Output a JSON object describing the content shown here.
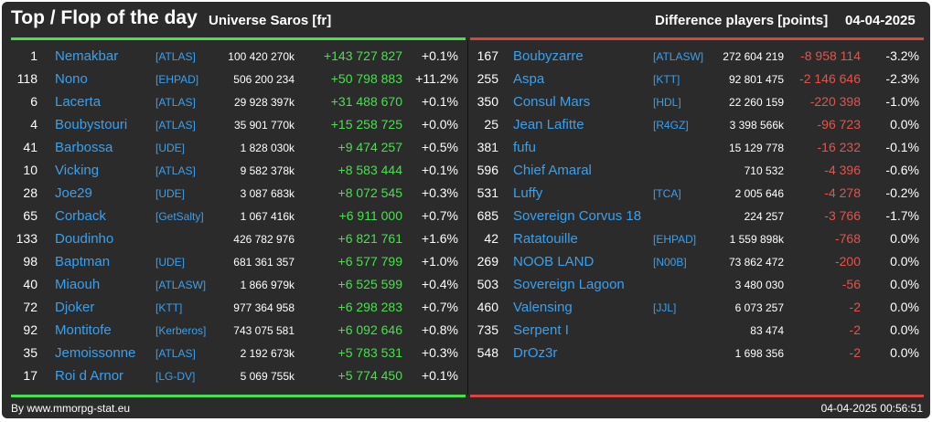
{
  "header": {
    "title": "Top / Flop of the day",
    "universe": "Universe Saros [fr]",
    "metric": "Difference players [points]",
    "date": "04-04-2025"
  },
  "colors": {
    "positive": "#49e04f",
    "negative": "#e5534b",
    "link": "#3aa0ee",
    "background": "#2b2b2b"
  },
  "top": [
    {
      "rank": "1",
      "name": "Nemakbar",
      "ally": "[ATLAS]",
      "points": "100 420 270k",
      "diff": "+143 727 827",
      "pct": "+0.1%"
    },
    {
      "rank": "118",
      "name": "Nono",
      "ally": "[EHPAD]",
      "points": "506 200 234",
      "diff": "+50 798 883",
      "pct": "+11.2%"
    },
    {
      "rank": "6",
      "name": "Lacerta",
      "ally": "[ATLAS]",
      "points": "29 928 397k",
      "diff": "+31 488 670",
      "pct": "+0.1%"
    },
    {
      "rank": "4",
      "name": "Boubystouri",
      "ally": "[ATLAS]",
      "points": "35 901 770k",
      "diff": "+15 258 725",
      "pct": "+0.0%"
    },
    {
      "rank": "41",
      "name": "Barbossa",
      "ally": "[UDE]",
      "points": "1 828 030k",
      "diff": "+9 474 257",
      "pct": "+0.5%"
    },
    {
      "rank": "10",
      "name": "Vicking",
      "ally": "[ATLAS]",
      "points": "9 582 378k",
      "diff": "+8 583 444",
      "pct": "+0.1%"
    },
    {
      "rank": "28",
      "name": "Joe29",
      "ally": "[UDE]",
      "points": "3 087 683k",
      "diff": "+8 072 545",
      "pct": "+0.3%"
    },
    {
      "rank": "65",
      "name": "Corback",
      "ally": "[GetSalty]",
      "points": "1 067 416k",
      "diff": "+6 911 000",
      "pct": "+0.7%"
    },
    {
      "rank": "133",
      "name": "Doudinho",
      "ally": "",
      "points": "426 782 976",
      "diff": "+6 821 761",
      "pct": "+1.6%"
    },
    {
      "rank": "98",
      "name": "Baptman",
      "ally": "[UDE]",
      "points": "681 361 357",
      "diff": "+6 577 799",
      "pct": "+1.0%"
    },
    {
      "rank": "40",
      "name": "Miaouh",
      "ally": "[ATLASW]",
      "points": "1 866 979k",
      "diff": "+6 525 599",
      "pct": "+0.4%"
    },
    {
      "rank": "72",
      "name": "Djoker",
      "ally": "[KTT]",
      "points": "977 364 958",
      "diff": "+6 298 283",
      "pct": "+0.7%"
    },
    {
      "rank": "92",
      "name": "Montitofe",
      "ally": "[Kerberos]",
      "points": "743 075 581",
      "diff": "+6 092 646",
      "pct": "+0.8%"
    },
    {
      "rank": "35",
      "name": "Jemoissonne",
      "ally": "[ATLAS]",
      "points": "2 192 673k",
      "diff": "+5 783 531",
      "pct": "+0.3%"
    },
    {
      "rank": "17",
      "name": "Roi d Arnor",
      "ally": "[LG-DV]",
      "points": "5 069 755k",
      "diff": "+5 774 450",
      "pct": "+0.1%"
    }
  ],
  "flop": [
    {
      "rank": "167",
      "name": "Boubyzarre",
      "ally": "[ATLASW]",
      "points": "272 604 219",
      "diff": "-8 958 114",
      "pct": "-3.2%"
    },
    {
      "rank": "255",
      "name": "Aspa",
      "ally": "[KTT]",
      "points": "92 801 475",
      "diff": "-2 146 646",
      "pct": "-2.3%"
    },
    {
      "rank": "350",
      "name": "Consul Mars",
      "ally": "[HDL]",
      "points": "22 260 159",
      "diff": "-220 398",
      "pct": "-1.0%"
    },
    {
      "rank": "25",
      "name": "Jean Lafitte",
      "ally": "[R4GZ]",
      "points": "3 398 566k",
      "diff": "-96 723",
      "pct": "0.0%"
    },
    {
      "rank": "381",
      "name": "fufu",
      "ally": "",
      "points": "15 129 778",
      "diff": "-16 232",
      "pct": "-0.1%"
    },
    {
      "rank": "596",
      "name": "Chief Amaral",
      "ally": "",
      "points": "710 532",
      "diff": "-4 396",
      "pct": "-0.6%"
    },
    {
      "rank": "531",
      "name": "Luffy",
      "ally": "[TCA]",
      "points": "2 005 646",
      "diff": "-4 278",
      "pct": "-0.2%"
    },
    {
      "rank": "685",
      "name": "Sovereign Corvus 18",
      "ally": "",
      "points": "224 257",
      "diff": "-3 766",
      "pct": "-1.7%"
    },
    {
      "rank": "42",
      "name": "Ratatouille",
      "ally": "[EHPAD]",
      "points": "1 559 898k",
      "diff": "-768",
      "pct": "0.0%"
    },
    {
      "rank": "269",
      "name": "NOOB LAND",
      "ally": "[N00B]",
      "points": "73 862 472",
      "diff": "-200",
      "pct": "0.0%"
    },
    {
      "rank": "503",
      "name": "Sovereign Lagoon",
      "ally": "",
      "points": "3 480 030",
      "diff": "-56",
      "pct": "0.0%"
    },
    {
      "rank": "460",
      "name": "Valensing",
      "ally": "[JJL]",
      "points": "6 073 257",
      "diff": "-2",
      "pct": "0.0%"
    },
    {
      "rank": "735",
      "name": "Serpent I",
      "ally": "",
      "points": "83 474",
      "diff": "-2",
      "pct": "0.0%"
    },
    {
      "rank": "548",
      "name": "DrOz3r",
      "ally": "",
      "points": "1 698 356",
      "diff": "-2",
      "pct": "0.0%"
    }
  ],
  "footer": {
    "credit": "By www.mmorpg-stat.eu",
    "timestamp": "04-04-2025 00:56:51"
  }
}
